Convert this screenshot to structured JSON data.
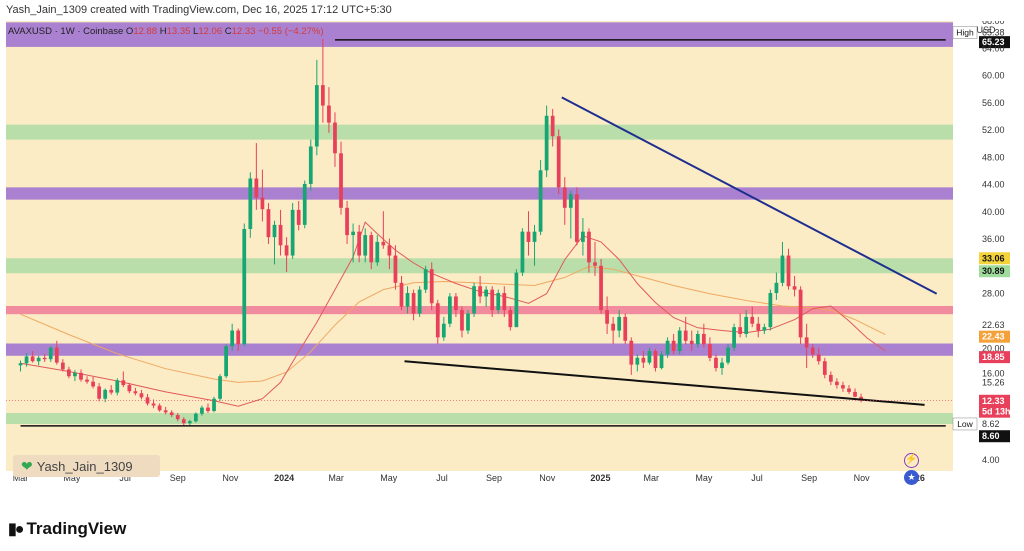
{
  "header": {
    "creator": "Yash_Jain_1309 created with TradingView.com, Dec 16, 2025 17:12 UTC+5:30"
  },
  "symbol": {
    "name": "AVAXUSD · 1W · Coinbase",
    "o_label": "O",
    "o": "12.88",
    "h_label": "H",
    "h": "13.35",
    "l_label": "L",
    "l": "12.06",
    "c_label": "C",
    "c": "12.33",
    "change": "−0.55 (−4.27%)"
  },
  "watermark": {
    "text": "Yash_Jain_1309"
  },
  "footer": {
    "brand": "TradingView"
  },
  "icons": {
    "bolt": "lightning-icon",
    "flag": "us-flag-icon"
  },
  "colors": {
    "bg": "#fbecc6",
    "up": "#17a673",
    "down": "#e8405a",
    "zone_purple": "#9b6fd1",
    "zone_green": "#a3d9a0",
    "zone_pink": "#ef7b96",
    "trend_blue": "#1e2f8f",
    "ema_red": "#e05a5a",
    "ema_orange": "#f0a860"
  },
  "chart_data": {
    "type": "candlestick",
    "title": "AVAXUSD · 1W · Coinbase",
    "currency": "USD",
    "ylim": [
      2,
      68
    ],
    "y_ticks": [
      "68.00",
      "64.00",
      "60.00",
      "56.00",
      "52.00",
      "48.00",
      "44.00",
      "40.00",
      "36.00",
      "28.00",
      "20.00",
      "16.00",
      "4.00"
    ],
    "x_ticks": [
      {
        "label": "Mar",
        "t": 0
      },
      {
        "label": "May",
        "t": 8.5
      },
      {
        "label": "Jul",
        "t": 17.3
      },
      {
        "label": "Sep",
        "t": 26
      },
      {
        "label": "Nov",
        "t": 34.7
      },
      {
        "label": "2024",
        "t": 43.6,
        "bold": true
      },
      {
        "label": "Mar",
        "t": 52.2
      },
      {
        "label": "May",
        "t": 60.9
      },
      {
        "label": "Jul",
        "t": 69.7
      },
      {
        "label": "Sep",
        "t": 78.3
      },
      {
        "label": "Nov",
        "t": 87.1
      },
      {
        "label": "2025",
        "t": 95.9,
        "bold": true
      },
      {
        "label": "Mar",
        "t": 104.3
      },
      {
        "label": "May",
        "t": 113
      },
      {
        "label": "Jul",
        "t": 121.8
      },
      {
        "label": "Sep",
        "t": 130.4
      },
      {
        "label": "Nov",
        "t": 139.1
      },
      {
        "label": "2026",
        "t": 147.9,
        "bold": true
      }
    ],
    "zones": [
      {
        "kind": "purple",
        "from": 64.2,
        "to": 67.8
      },
      {
        "kind": "green",
        "from": 50.6,
        "to": 52.8
      },
      {
        "kind": "purple",
        "from": 41.8,
        "to": 43.6
      },
      {
        "kind": "green",
        "from": 31.0,
        "to": 33.2
      },
      {
        "kind": "pink",
        "from": 25.0,
        "to": 26.2
      },
      {
        "kind": "purple",
        "from": 18.9,
        "to": 20.7
      },
      {
        "kind": "green",
        "from": 8.9,
        "to": 10.5
      }
    ],
    "lines": [
      {
        "name": "High line",
        "type": "horizontal",
        "t1": 52,
        "t2": 153,
        "y": 65.23,
        "color": "#111111"
      },
      {
        "name": "Low line",
        "type": "horizontal",
        "t1": 0,
        "t2": 153,
        "y": 8.62,
        "color": "#111111"
      },
      {
        "name": "Descending resistance",
        "type": "trend",
        "t1": 89.5,
        "y1": 56.8,
        "t2": 151.5,
        "y2": 28.0,
        "color": "#1e2f8f"
      },
      {
        "name": "Descending support",
        "type": "trend",
        "t1": 63.5,
        "y1": 18.1,
        "t2": 149.5,
        "y2": 11.7,
        "color": "#111111"
      }
    ],
    "price_labels": [
      {
        "text": "68.00",
        "y": 68.0,
        "style": "tick"
      },
      {
        "text": "High",
        "y": 66.3,
        "style": "tag-white",
        "side": "left"
      },
      {
        "text": "65.38",
        "y": 66.3,
        "style": "tick"
      },
      {
        "text": "65.23",
        "y": 64.9,
        "style": "tag-black"
      },
      {
        "text": "64.00",
        "y": 64.0,
        "style": "tick"
      },
      {
        "text": "60.00",
        "y": 60.0,
        "style": "tick"
      },
      {
        "text": "56.00",
        "y": 56.0,
        "style": "tick"
      },
      {
        "text": "52.00",
        "y": 52.0,
        "style": "tick"
      },
      {
        "text": "48.00",
        "y": 48.0,
        "style": "tick"
      },
      {
        "text": "44.00",
        "y": 44.0,
        "style": "tick"
      },
      {
        "text": "40.00",
        "y": 40.0,
        "style": "tick"
      },
      {
        "text": "36.00",
        "y": 36.0,
        "style": "tick"
      },
      {
        "text": "33.06",
        "y": 33.2,
        "style": "tag-yellow"
      },
      {
        "text": "30.89",
        "y": 31.3,
        "style": "tag-lightgreen"
      },
      {
        "text": "28.00",
        "y": 28.0,
        "style": "tick"
      },
      {
        "text": "22.63",
        "y": 23.4,
        "style": "tick"
      },
      {
        "text": "22.43",
        "y": 21.7,
        "style": "tag-orange"
      },
      {
        "text": "20.00",
        "y": 20.0,
        "style": "tick"
      },
      {
        "text": "18.85",
        "y": 18.7,
        "style": "tag-red"
      },
      {
        "text": "16.00",
        "y": 16.3,
        "style": "tick"
      },
      {
        "text": "15.26",
        "y": 15.0,
        "style": "tick"
      },
      {
        "text": "12.33",
        "y": 12.3,
        "style": "tag-red"
      },
      {
        "text": "5d 13h",
        "y": 10.7,
        "style": "tag-red"
      },
      {
        "text": "Low",
        "y": 8.9,
        "style": "tag-white",
        "side": "left"
      },
      {
        "text": "8.62",
        "y": 8.9,
        "style": "tick"
      },
      {
        "text": "8.60",
        "y": 7.1,
        "style": "tag-black"
      },
      {
        "text": "4.00",
        "y": 3.6,
        "style": "tick"
      }
    ],
    "ema_short": [
      [
        0,
        17.8
      ],
      [
        8,
        16.6
      ],
      [
        16,
        15.2
      ],
      [
        24,
        13.6
      ],
      [
        32,
        12.3
      ],
      [
        36,
        11.5
      ],
      [
        40,
        12.6
      ],
      [
        43,
        15.0
      ],
      [
        46,
        19.5
      ],
      [
        49,
        23.8
      ],
      [
        52,
        28.6
      ],
      [
        55,
        33.4
      ],
      [
        57,
        38.5
      ],
      [
        59,
        36.8
      ],
      [
        62,
        34.4
      ],
      [
        65,
        32.5
      ],
      [
        68,
        31.0
      ],
      [
        72,
        29.5
      ],
      [
        76,
        28.3
      ],
      [
        80,
        27.6
      ],
      [
        84,
        26.6
      ],
      [
        87,
        28.0
      ],
      [
        90,
        33.0
      ],
      [
        93,
        36.5
      ],
      [
        96,
        35.6
      ],
      [
        99,
        33.0
      ],
      [
        102,
        29.5
      ],
      [
        105,
        26.7
      ],
      [
        108,
        24.5
      ],
      [
        112,
        23.0
      ],
      [
        116,
        22.6
      ],
      [
        120,
        22.3
      ],
      [
        124,
        22.8
      ],
      [
        128,
        24.2
      ],
      [
        131,
        25.8
      ],
      [
        134,
        26.2
      ],
      [
        137,
        24.0
      ],
      [
        140,
        21.5
      ],
      [
        143,
        19.6
      ]
    ],
    "ema_long": [
      [
        0,
        25.0
      ],
      [
        8,
        22.0
      ],
      [
        16,
        19.2
      ],
      [
        24,
        17.0
      ],
      [
        32,
        15.5
      ],
      [
        36,
        15.0
      ],
      [
        40,
        15.2
      ],
      [
        44,
        16.5
      ],
      [
        48,
        19.5
      ],
      [
        52,
        23.4
      ],
      [
        56,
        26.8
      ],
      [
        60,
        28.6
      ],
      [
        65,
        29.6
      ],
      [
        70,
        29.8
      ],
      [
        75,
        29.6
      ],
      [
        80,
        29.4
      ],
      [
        85,
        29.2
      ],
      [
        90,
        30.4
      ],
      [
        94,
        32.0
      ],
      [
        98,
        31.6
      ],
      [
        103,
        30.4
      ],
      [
        108,
        29.2
      ],
      [
        114,
        28.0
      ],
      [
        120,
        27.0
      ],
      [
        126,
        26.2
      ],
      [
        130,
        26.0
      ],
      [
        134,
        25.6
      ],
      [
        138,
        24.2
      ],
      [
        143,
        22.0
      ]
    ],
    "candles": [
      [
        17.5,
        18.2,
        16.6,
        17.8
      ],
      [
        17.8,
        19.3,
        17.3,
        18.8
      ],
      [
        18.8,
        19.6,
        17.9,
        18.1
      ],
      [
        18.1,
        18.9,
        17.5,
        18.6
      ],
      [
        18.6,
        19.2,
        18.0,
        18.4
      ],
      [
        18.4,
        20.3,
        18.0,
        20.1
      ],
      [
        20.1,
        21.1,
        17.6,
        17.9
      ],
      [
        17.9,
        18.4,
        16.6,
        16.9
      ],
      [
        16.9,
        17.3,
        15.6,
        15.9
      ],
      [
        15.9,
        16.8,
        15.2,
        16.4
      ],
      [
        16.4,
        16.9,
        15.1,
        15.4
      ],
      [
        15.4,
        15.9,
        14.8,
        15.1
      ],
      [
        15.1,
        15.8,
        14.1,
        14.4
      ],
      [
        14.4,
        14.9,
        12.2,
        12.6
      ],
      [
        12.6,
        14.1,
        12.1,
        13.9
      ],
      [
        13.9,
        14.6,
        13.2,
        13.5
      ],
      [
        13.5,
        15.6,
        13.1,
        15.3
      ],
      [
        15.3,
        16.6,
        14.3,
        14.6
      ],
      [
        14.6,
        14.9,
        13.4,
        13.7
      ],
      [
        13.7,
        14.2,
        13.1,
        13.4
      ],
      [
        13.4,
        13.9,
        12.5,
        12.8
      ],
      [
        12.8,
        13.3,
        11.6,
        11.9
      ],
      [
        11.9,
        12.5,
        11.2,
        11.6
      ],
      [
        11.6,
        11.9,
        10.7,
        10.9
      ],
      [
        10.9,
        11.4,
        10.3,
        10.6
      ],
      [
        10.6,
        10.9,
        9.9,
        10.2
      ],
      [
        10.2,
        10.5,
        9.3,
        9.6
      ],
      [
        9.6,
        9.9,
        8.7,
        9.0
      ],
      [
        9.0,
        9.5,
        8.6,
        9.3
      ],
      [
        9.3,
        10.6,
        9.1,
        10.4
      ],
      [
        10.4,
        11.6,
        10.1,
        11.3
      ],
      [
        11.3,
        11.9,
        10.5,
        10.8
      ],
      [
        10.8,
        12.9,
        10.6,
        12.6
      ],
      [
        12.6,
        16.2,
        12.3,
        15.9
      ],
      [
        15.9,
        20.6,
        15.6,
        20.3
      ],
      [
        20.3,
        23.6,
        19.6,
        22.6
      ],
      [
        22.6,
        22.9,
        19.6,
        20.6
      ],
      [
        20.6,
        38.3,
        20.3,
        37.5
      ],
      [
        37.5,
        45.8,
        36.2,
        44.9
      ],
      [
        44.9,
        50.1,
        40.3,
        42.1
      ],
      [
        42.1,
        46.2,
        38.6,
        40.4
      ],
      [
        40.4,
        41.3,
        35.3,
        36.3
      ],
      [
        36.3,
        38.7,
        32.3,
        38.1
      ],
      [
        38.1,
        40.3,
        33.6,
        35.1
      ],
      [
        35.1,
        36.3,
        31.2,
        33.6
      ],
      [
        33.6,
        41.3,
        33.1,
        40.3
      ],
      [
        40.3,
        41.6,
        37.3,
        38.1
      ],
      [
        38.1,
        44.6,
        37.6,
        44.1
      ],
      [
        44.1,
        50.6,
        43.1,
        49.6
      ],
      [
        49.6,
        62.3,
        48.3,
        58.6
      ],
      [
        58.6,
        65.38,
        53.1,
        55.6
      ],
      [
        55.6,
        58.3,
        51.6,
        53.1
      ],
      [
        53.1,
        54.6,
        46.6,
        48.6
      ],
      [
        48.6,
        50.3,
        39.6,
        40.6
      ],
      [
        40.6,
        41.6,
        35.3,
        36.6
      ],
      [
        36.6,
        38.3,
        32.6,
        37.1
      ],
      [
        37.1,
        38.1,
        32.6,
        33.6
      ],
      [
        33.6,
        37.6,
        32.6,
        36.6
      ],
      [
        36.6,
        37.1,
        31.6,
        32.6
      ],
      [
        32.6,
        36.6,
        32.1,
        35.6
      ],
      [
        35.6,
        40.1,
        34.6,
        35.1
      ],
      [
        35.1,
        36.1,
        31.6,
        33.6
      ],
      [
        33.6,
        35.1,
        28.6,
        29.6
      ],
      [
        29.6,
        30.6,
        25.6,
        26.1
      ],
      [
        26.1,
        29.1,
        25.1,
        28.1
      ],
      [
        28.1,
        28.6,
        24.1,
        25.1
      ],
      [
        25.1,
        29.1,
        24.6,
        28.6
      ],
      [
        28.6,
        32.1,
        28.1,
        31.6
      ],
      [
        31.6,
        32.6,
        25.6,
        26.6
      ],
      [
        26.6,
        27.1,
        20.6,
        21.6
      ],
      [
        21.6,
        24.6,
        21.1,
        23.6
      ],
      [
        23.6,
        28.1,
        23.1,
        27.6
      ],
      [
        27.6,
        28.1,
        24.6,
        25.6
      ],
      [
        25.6,
        26.1,
        21.6,
        22.6
      ],
      [
        22.6,
        25.6,
        22.1,
        25.1
      ],
      [
        25.1,
        29.6,
        24.6,
        29.1
      ],
      [
        29.1,
        30.6,
        26.6,
        27.6
      ],
      [
        27.6,
        29.1,
        26.1,
        28.6
      ],
      [
        28.6,
        29.1,
        24.6,
        25.6
      ],
      [
        25.6,
        28.6,
        25.1,
        28.1
      ],
      [
        28.1,
        29.1,
        24.6,
        25.6
      ],
      [
        25.6,
        26.1,
        22.6,
        23.1
      ],
      [
        23.1,
        31.6,
        23.1,
        31.1
      ],
      [
        31.1,
        37.6,
        30.6,
        37.1
      ],
      [
        37.1,
        40.1,
        33.6,
        35.6
      ],
      [
        35.6,
        38.1,
        32.1,
        37.1
      ],
      [
        37.1,
        47.6,
        36.6,
        46.1
      ],
      [
        46.1,
        55.6,
        45.1,
        54.1
      ],
      [
        54.1,
        55.1,
        49.6,
        51.1
      ],
      [
        51.1,
        52.1,
        42.6,
        43.6
      ],
      [
        43.6,
        45.1,
        38.1,
        40.6
      ],
      [
        40.6,
        43.1,
        36.1,
        42.6
      ],
      [
        42.6,
        43.6,
        35.1,
        35.6
      ],
      [
        35.6,
        39.1,
        33.6,
        37.1
      ],
      [
        37.1,
        37.6,
        31.1,
        32.6
      ],
      [
        32.6,
        35.6,
        30.6,
        32.1
      ],
      [
        32.1,
        33.1,
        25.1,
        25.6
      ],
      [
        25.6,
        27.6,
        22.1,
        23.6
      ],
      [
        23.6,
        24.6,
        20.6,
        22.6
      ],
      [
        22.6,
        25.6,
        21.6,
        24.6
      ],
      [
        24.6,
        25.1,
        20.6,
        21.1
      ],
      [
        21.1,
        21.6,
        16.1,
        17.6
      ],
      [
        17.6,
        19.1,
        16.6,
        18.6
      ],
      [
        18.6,
        19.6,
        17.1,
        17.9
      ],
      [
        17.9,
        20.1,
        17.6,
        19.6
      ],
      [
        19.6,
        19.9,
        16.6,
        17.1
      ],
      [
        17.1,
        19.6,
        16.9,
        19.1
      ],
      [
        19.1,
        21.6,
        18.6,
        21.1
      ],
      [
        21.1,
        22.1,
        19.1,
        19.6
      ],
      [
        19.6,
        23.1,
        19.1,
        22.6
      ],
      [
        22.6,
        24.6,
        20.6,
        21.1
      ],
      [
        21.1,
        22.6,
        19.6,
        20.6
      ],
      [
        20.6,
        22.6,
        20.1,
        22.1
      ],
      [
        22.1,
        23.6,
        20.1,
        20.6
      ],
      [
        20.6,
        21.6,
        18.1,
        18.6
      ],
      [
        18.6,
        19.1,
        16.6,
        17.1
      ],
      [
        17.1,
        18.6,
        16.1,
        17.9
      ],
      [
        17.9,
        20.6,
        17.6,
        20.1
      ],
      [
        20.1,
        23.6,
        19.6,
        23.1
      ],
      [
        23.1,
        25.1,
        21.6,
        22.1
      ],
      [
        22.1,
        25.6,
        21.6,
        24.6
      ],
      [
        24.6,
        26.1,
        23.1,
        23.6
      ],
      [
        23.6,
        24.6,
        21.6,
        22.6
      ],
      [
        22.6,
        23.6,
        22.1,
        23.1
      ],
      [
        23.1,
        28.6,
        22.6,
        28.1
      ],
      [
        28.1,
        31.1,
        27.1,
        29.6
      ],
      [
        29.6,
        35.6,
        29.1,
        33.6
      ],
      [
        33.6,
        34.6,
        28.6,
        29.1
      ],
      [
        29.1,
        30.6,
        27.6,
        28.6
      ],
      [
        28.6,
        29.1,
        20.6,
        21.6
      ],
      [
        21.6,
        23.6,
        17.1,
        20.1
      ],
      [
        20.1,
        20.6,
        18.6,
        19.1
      ],
      [
        19.1,
        20.1,
        17.6,
        18.1
      ],
      [
        18.1,
        18.6,
        15.6,
        16.1
      ],
      [
        16.1,
        16.6,
        14.6,
        15.1
      ],
      [
        15.1,
        15.6,
        14.1,
        14.6
      ],
      [
        14.6,
        15.1,
        13.6,
        14.1
      ],
      [
        14.1,
        14.6,
        13.3,
        13.6
      ],
      [
        13.6,
        14.1,
        12.8,
        12.9
      ],
      [
        12.88,
        13.35,
        12.06,
        12.33
      ]
    ]
  }
}
